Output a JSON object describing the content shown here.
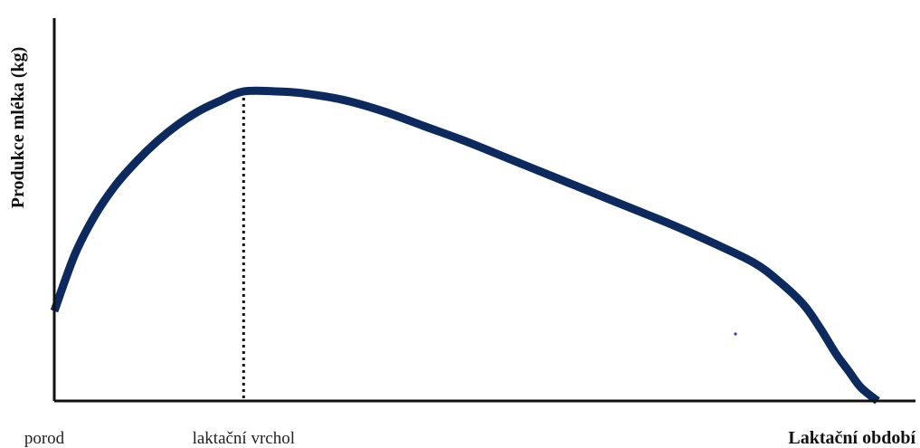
{
  "chart_data": {
    "type": "line",
    "title": "",
    "xlabel": "Laktační období",
    "ylabel": "Produkce mléka (kg)",
    "x_tick_labels": [
      "porod",
      "laktační vrchol"
    ],
    "x_ticks": [
      0,
      23
    ],
    "xlim": [
      0,
      100
    ],
    "ylim": [
      0,
      100
    ],
    "series": [
      {
        "color": "#0d2a5e",
        "x": [
          0,
          2.5,
          5,
          7.5,
          10,
          12.5,
          15,
          17.5,
          20,
          23,
          27,
          30,
          35,
          40,
          45,
          50,
          55,
          60,
          65,
          70,
          75,
          80,
          85,
          88,
          91,
          93,
          95,
          96.5,
          98,
          100
        ],
        "y": [
          27,
          44,
          56,
          65,
          72,
          78,
          83,
          87,
          90,
          93,
          93,
          92.5,
          90.5,
          87,
          82.5,
          78,
          73,
          68,
          63,
          58,
          53,
          47.5,
          41.5,
          36,
          29,
          22,
          14,
          9,
          4,
          0
        ]
      }
    ],
    "peak_marker": {
      "x": 23,
      "style": "dotted"
    },
    "grid": false,
    "legend": "none"
  }
}
